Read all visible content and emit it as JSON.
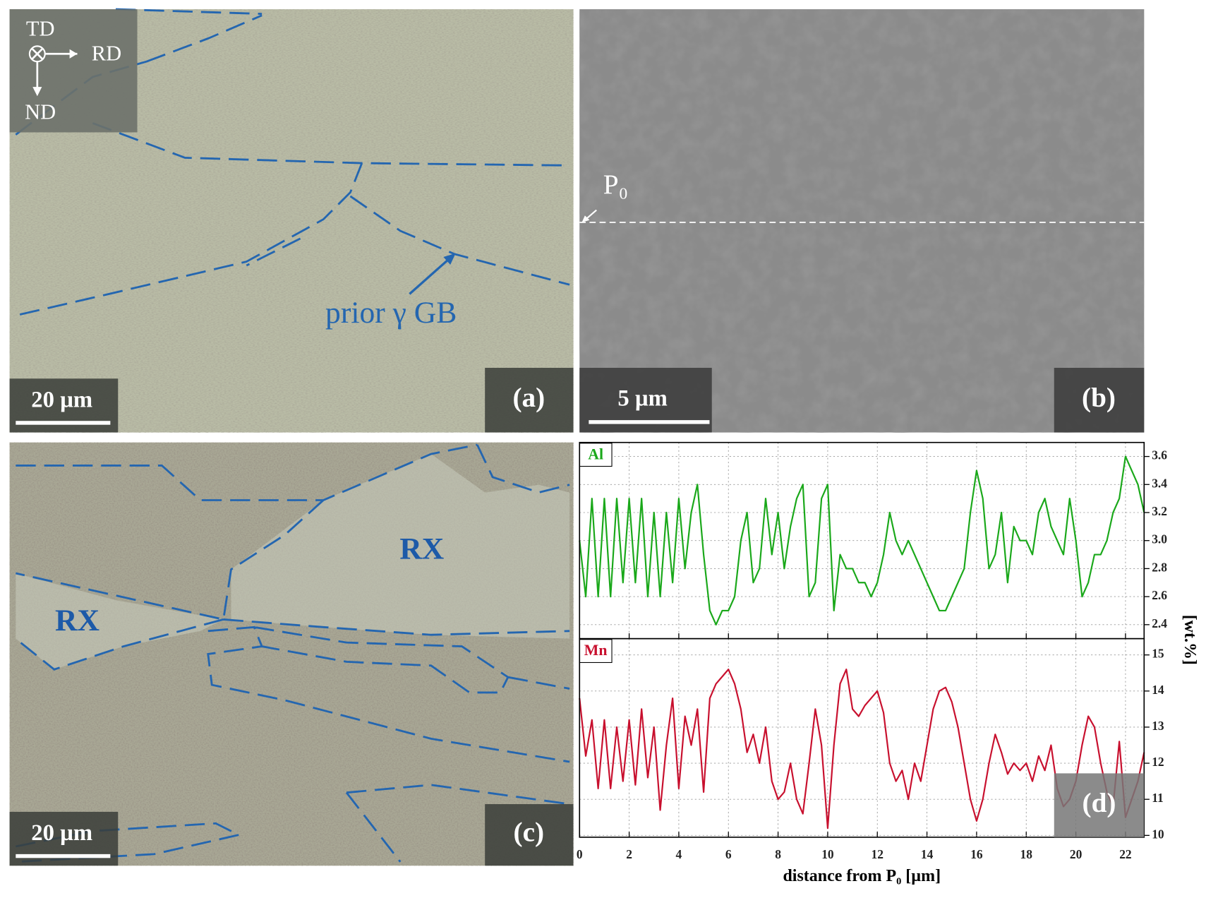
{
  "panels": {
    "a": {
      "axes": [
        "TD",
        "RD",
        "ND"
      ],
      "annotation": "prior γ GB",
      "scale_bar": "20 µm",
      "label": "(a)"
    },
    "b": {
      "point": "P₀",
      "scale_bar": "5 µm",
      "label": "(b)"
    },
    "c": {
      "regions": [
        "RX",
        "RX"
      ],
      "scale_bar": "20 µm",
      "label": "(c)"
    }
  },
  "chart_data": [
    {
      "type": "line",
      "x": [
        0,
        0.25,
        0.5,
        0.75,
        1,
        1.25,
        1.5,
        1.75,
        2,
        2.25,
        2.5,
        2.75,
        3,
        3.25,
        3.5,
        3.75,
        4,
        4.25,
        4.5,
        4.75,
        5,
        5.25,
        5.5,
        5.75,
        6,
        6.25,
        6.5,
        6.75,
        7,
        7.25,
        7.5,
        7.75,
        8,
        8.25,
        8.5,
        8.75,
        9,
        9.25,
        9.5,
        9.75,
        10,
        10.25,
        10.5,
        10.75,
        11,
        11.25,
        11.5,
        11.75,
        12,
        12.25,
        12.5,
        12.75,
        13,
        13.25,
        13.5,
        13.75,
        14,
        14.25,
        14.5,
        14.75,
        15,
        15.25,
        15.5,
        15.75,
        16,
        16.25,
        16.5,
        16.75,
        17,
        17.25,
        17.5,
        17.75,
        18,
        18.25,
        18.5,
        18.75,
        19,
        19.25,
        19.5,
        19.75,
        20,
        20.25,
        20.5,
        20.75,
        21,
        21.25,
        21.5,
        21.75,
        22,
        22.25,
        22.5,
        22.75
      ],
      "series": [
        {
          "name": "Al",
          "color": "#1aa81a",
          "values": [
            3.0,
            2.6,
            3.3,
            2.6,
            3.3,
            2.6,
            3.3,
            2.7,
            3.3,
            2.7,
            3.3,
            2.6,
            3.2,
            2.6,
            3.2,
            2.7,
            3.3,
            2.8,
            3.2,
            3.4,
            2.9,
            2.5,
            2.4,
            2.5,
            2.5,
            2.6,
            3.0,
            3.2,
            2.7,
            2.8,
            3.3,
            2.9,
            3.2,
            2.8,
            3.1,
            3.3,
            3.4,
            2.6,
            2.7,
            3.3,
            3.4,
            2.5,
            2.9,
            2.8,
            2.8,
            2.7,
            2.7,
            2.6,
            2.7,
            2.9,
            3.2,
            3.0,
            2.9,
            3.0,
            2.9,
            2.8,
            2.7,
            2.6,
            2.5,
            2.5,
            2.6,
            2.7,
            2.8,
            3.2,
            3.5,
            3.3,
            2.8,
            2.9,
            3.2,
            2.7,
            3.1,
            3.0,
            3.0,
            2.9,
            3.2,
            3.3,
            3.1,
            3.0,
            2.9,
            3.3,
            3.0,
            2.6,
            2.7,
            2.9,
            2.9,
            3.0,
            3.2,
            3.3,
            3.6,
            3.5,
            3.4,
            3.2
          ]
        }
      ],
      "xlim": [
        0,
        22.75
      ],
      "xticks": [
        0,
        2,
        4,
        6,
        8,
        10,
        12,
        14,
        16,
        18,
        20,
        22
      ],
      "ylim": [
        2.3,
        3.7
      ],
      "yticks": [
        2.4,
        2.6,
        2.8,
        {
          "value": 3,
          "label": "3.0"
        },
        3.2,
        3.4,
        3.6
      ],
      "grid": true
    },
    {
      "type": "line",
      "x": [
        0,
        0.25,
        0.5,
        0.75,
        1,
        1.25,
        1.5,
        1.75,
        2,
        2.25,
        2.5,
        2.75,
        3,
        3.25,
        3.5,
        3.75,
        4,
        4.25,
        4.5,
        4.75,
        5,
        5.25,
        5.5,
        5.75,
        6,
        6.25,
        6.5,
        6.75,
        7,
        7.25,
        7.5,
        7.75,
        8,
        8.25,
        8.5,
        8.75,
        9,
        9.25,
        9.5,
        9.75,
        10,
        10.25,
        10.5,
        10.75,
        11,
        11.25,
        11.5,
        11.75,
        12,
        12.25,
        12.5,
        12.75,
        13,
        13.25,
        13.5,
        13.75,
        14,
        14.25,
        14.5,
        14.75,
        15,
        15.25,
        15.5,
        15.75,
        16,
        16.25,
        16.5,
        16.75,
        17,
        17.25,
        17.5,
        17.75,
        18,
        18.25,
        18.5,
        18.75,
        19,
        19.25,
        19.5,
        19.75,
        20,
        20.25,
        20.5,
        20.75,
        21,
        21.25,
        21.5,
        21.75,
        22,
        22.25,
        22.5,
        22.75
      ],
      "series": [
        {
          "name": "Mn",
          "color": "#c8102e",
          "values": [
            13.8,
            12.2,
            13.2,
            11.3,
            13.2,
            11.3,
            13.0,
            11.5,
            13.2,
            11.4,
            13.5,
            11.6,
            13.0,
            10.7,
            12.5,
            13.8,
            11.3,
            13.3,
            12.5,
            13.5,
            11.2,
            13.8,
            14.2,
            14.4,
            14.6,
            14.2,
            13.5,
            12.3,
            12.8,
            12.0,
            13.0,
            11.5,
            11.0,
            11.2,
            12.0,
            11.0,
            10.6,
            12.0,
            13.5,
            12.5,
            10.2,
            12.5,
            14.2,
            14.6,
            13.5,
            13.3,
            13.6,
            13.8,
            14.0,
            13.4,
            12.0,
            11.5,
            11.8,
            11.0,
            12.0,
            11.5,
            12.5,
            13.5,
            14.0,
            14.1,
            13.7,
            13.0,
            12.0,
            11.0,
            10.4,
            11.0,
            12.0,
            12.8,
            12.3,
            11.7,
            12.0,
            11.8,
            12.0,
            11.5,
            12.2,
            11.8,
            12.5,
            11.3,
            10.8,
            11.0,
            11.5,
            12.5,
            13.3,
            13.0,
            12.0,
            11.2,
            10.8,
            12.6,
            10.5,
            11.0,
            11.5,
            12.3
          ]
        }
      ],
      "xlim": [
        0,
        22.75
      ],
      "xticks": [
        0,
        2,
        4,
        6,
        8,
        10,
        12,
        14,
        16,
        18,
        20,
        22
      ],
      "ylim": [
        9.95,
        15.45
      ],
      "yticks": [
        10,
        11,
        12,
        13,
        14,
        15
      ],
      "xlabel": "distance from P₀ [µm]",
      "ylabel": "[wt.%]",
      "panel_label": "(d)",
      "grid": true
    }
  ]
}
